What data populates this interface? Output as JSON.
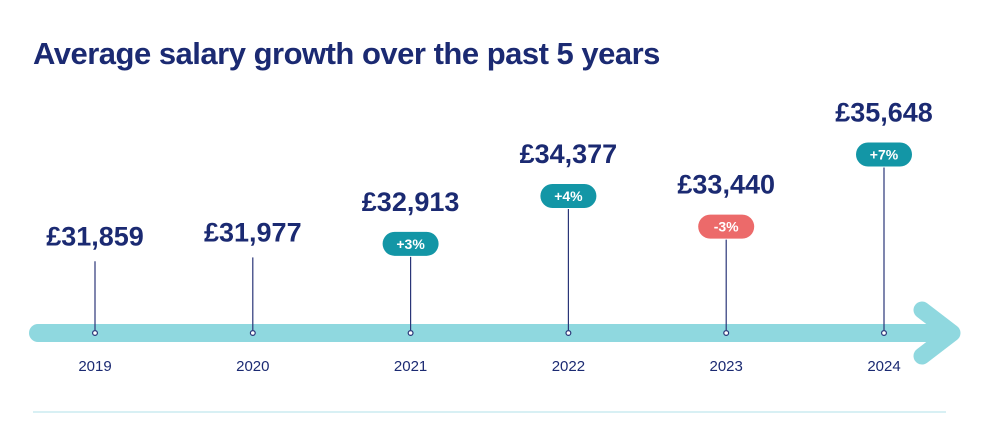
{
  "title": "Average salary growth over the past 5 years",
  "colors": {
    "title": "#1b2a72",
    "value_text": "#1b2a72",
    "year_text": "#1b2a72",
    "arrow": "#8fd8df",
    "stem": "#2a3578",
    "badge_positive": "#1396a6",
    "badge_negative": "#ec6a6a",
    "badge_text": "#ffffff"
  },
  "chart_data": {
    "type": "line",
    "title": "Average salary growth over the past 5 years",
    "x": [
      "2019",
      "2020",
      "2021",
      "2022",
      "2023",
      "2024"
    ],
    "values": [
      31859,
      31977,
      32913,
      34377,
      33440,
      35648
    ],
    "value_labels": [
      "£31,859",
      "£31,977",
      "£32,913",
      "£34,377",
      "£33,440",
      "£35,648"
    ],
    "change_labels": [
      "",
      "",
      "+3%",
      "+4%",
      "-3%",
      "+7%"
    ],
    "xlabel": "",
    "ylabel": "",
    "grid": false
  }
}
